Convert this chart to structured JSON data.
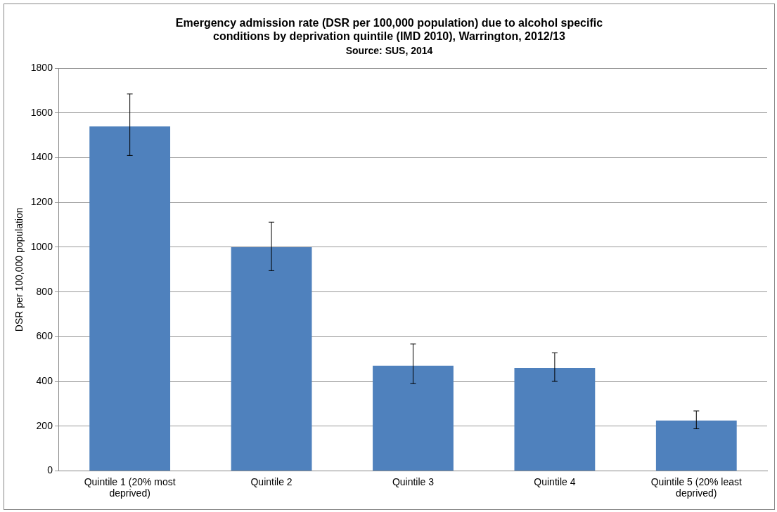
{
  "chart_data": {
    "type": "bar",
    "title": "Emergency admission rate (DSR per 100,000 population) due to alcohol specific conditions by deprivation quintile (IMD 2010), Warrington, 2012/13",
    "subtitle": "Source: SUS, 2014",
    "ylabel": "DSR per 100,000 population",
    "categories": [
      "Quintile 1 (20% most deprived)",
      "Quintile 2",
      "Quintile 3",
      "Quintile 4",
      "Quintile 5 (20% least deprived)"
    ],
    "values": [
      1540,
      1000,
      470,
      460,
      225
    ],
    "errors": [
      [
        1410,
        1685
      ],
      [
        895,
        1112
      ],
      [
        390,
        567
      ],
      [
        400,
        528
      ],
      [
        188,
        268
      ]
    ],
    "color": "#4f81bd",
    "ylim": [
      0,
      1800
    ],
    "yticks": [
      0,
      200,
      400,
      600,
      800,
      1000,
      1200,
      1400,
      1600,
      1800
    ],
    "grid": "y"
  }
}
